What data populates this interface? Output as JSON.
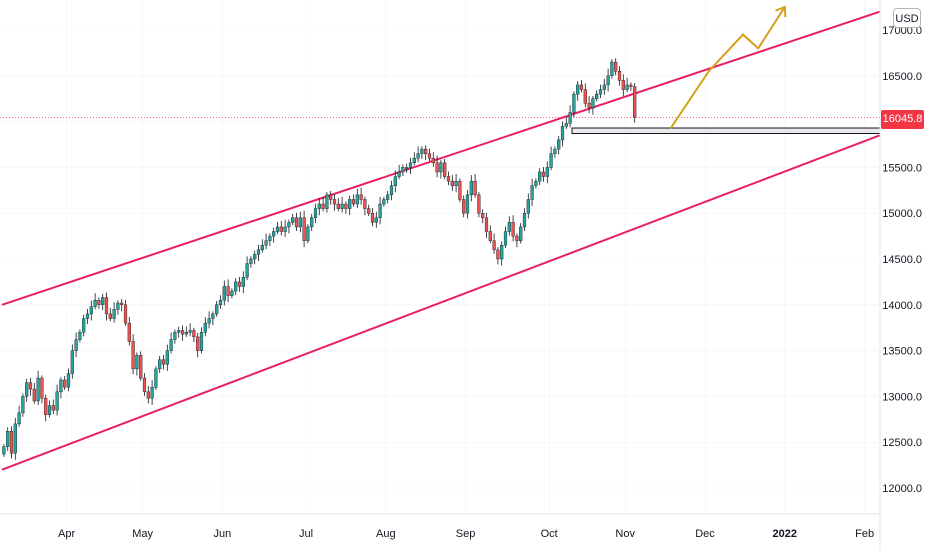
{
  "currency_label": "USD",
  "last_price_label": "16045.8",
  "colors": {
    "up": "#26a69a",
    "down": "#ef5350",
    "channel": "#e91e63",
    "arrow": "#d4a017",
    "last_price": "#f23645",
    "grid": "#e0e3eb",
    "support_zone": "#e8e8e8"
  },
  "chart_data": {
    "type": "candlestick",
    "title": "",
    "xlabel": "",
    "ylabel": "",
    "y_ticks": [
      12000,
      12500,
      13000,
      13500,
      14000,
      14500,
      15000,
      15500,
      16000,
      16500,
      17000
    ],
    "y_tick_labels": [
      "12000.0",
      "12500.0",
      "13000.0",
      "13500.0",
      "14000.0",
      "14500.0",
      "15000.0",
      "15500.0",
      "16000.0",
      "16500.0",
      "17000.0"
    ],
    "ylim": [
      11800,
      17350
    ],
    "x_tick_labels": [
      "Apr",
      "May",
      "Jun",
      "Jul",
      "Aug",
      "Sep",
      "Oct",
      "Nov",
      "Dec",
      "2022",
      "Feb"
    ],
    "last_price": 16045.8,
    "close_series": [
      12450,
      12620,
      12380,
      12700,
      12820,
      13000,
      13150,
      13080,
      12950,
      13200,
      12980,
      12800,
      12900,
      12850,
      13050,
      13180,
      13100,
      13250,
      13500,
      13620,
      13700,
      13850,
      13900,
      13980,
      14050,
      14000,
      14080,
      13900,
      13850,
      13950,
      14020,
      14000,
      13800,
      13600,
      13300,
      13450,
      13200,
      13050,
      12980,
      13100,
      13300,
      13400,
      13350,
      13500,
      13620,
      13700,
      13720,
      13680,
      13700,
      13720,
      13650,
      13500,
      13700,
      13800,
      13850,
      13900,
      14000,
      14050,
      14200,
      14100,
      14150,
      14250,
      14200,
      14300,
      14450,
      14500,
      14550,
      14600,
      14650,
      14700,
      14750,
      14800,
      14850,
      14800,
      14850,
      14900,
      14950,
      14850,
      14950,
      14700,
      14850,
      14950,
      15050,
      15100,
      15050,
      15200,
      15150,
      15100,
      15050,
      15100,
      15050,
      15150,
      15100,
      15200,
      15150,
      15050,
      15000,
      14900,
      14950,
      15100,
      15150,
      15200,
      15300,
      15400,
      15450,
      15500,
      15500,
      15550,
      15600,
      15650,
      15700,
      15650,
      15600,
      15550,
      15450,
      15550,
      15400,
      15350,
      15300,
      15350,
      15150,
      15000,
      15200,
      15350,
      15200,
      15000,
      14950,
      14800,
      14700,
      14600,
      14500,
      14650,
      14800,
      14900,
      14750,
      14700,
      14850,
      15000,
      15150,
      15300,
      15350,
      15450,
      15400,
      15500,
      15650,
      15700,
      15800,
      15950,
      15980,
      16100,
      16300,
      16400,
      16350,
      16200,
      16150,
      16250,
      16300,
      16350,
      16400,
      16500,
      16650,
      16550,
      16450,
      16350,
      16400,
      16380,
      16045.8
    ],
    "channel_lines": [
      {
        "name": "upper",
        "points": [
          {
            "bar": 0,
            "value": 14000
          },
          {
            "bar": 231,
            "value": 17200
          }
        ]
      },
      {
        "name": "lower",
        "points": [
          {
            "bar": 0,
            "value": 12200
          },
          {
            "bar": 231,
            "value": 15850
          }
        ]
      }
    ],
    "horizontal_levels": [
      {
        "name": "last-price-line",
        "value": 16045.8
      },
      {
        "name": "support-zone",
        "from": 15870,
        "to": 15930
      }
    ],
    "projection_path": [
      {
        "bar": 176,
        "value": 15930
      },
      {
        "bar": 186,
        "value": 16550
      },
      {
        "bar": 195,
        "value": 16950
      },
      {
        "bar": 199,
        "value": 16800
      },
      {
        "bar": 206,
        "value": 17250
      }
    ]
  }
}
